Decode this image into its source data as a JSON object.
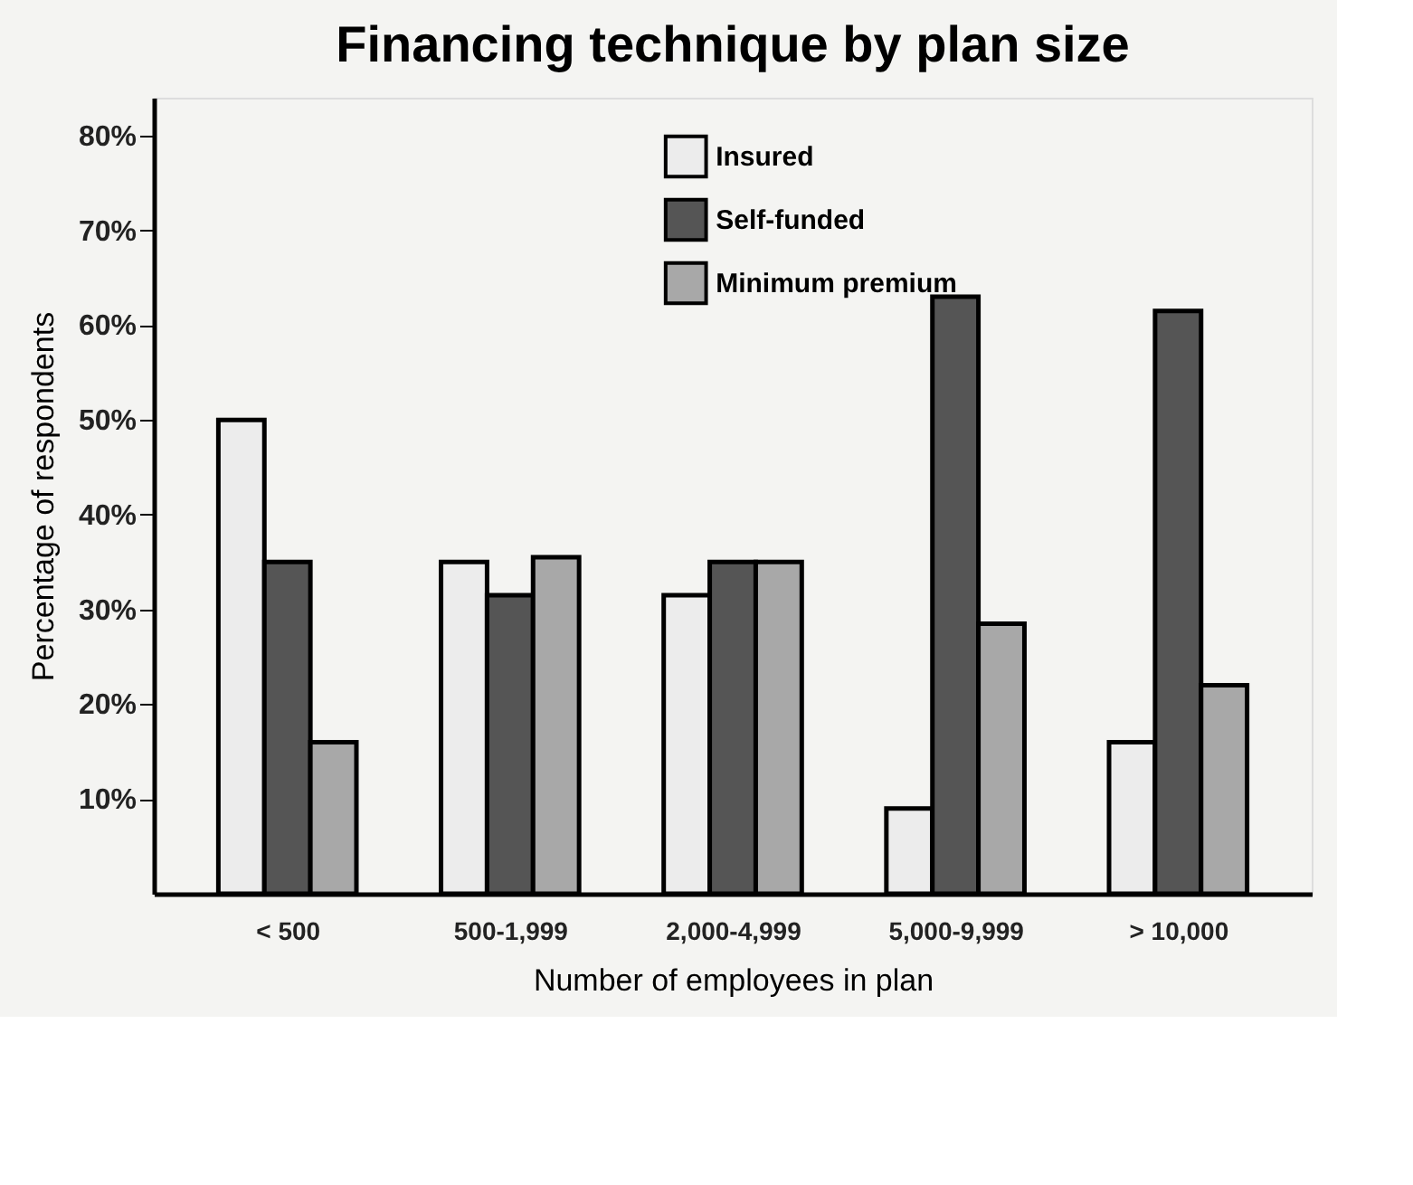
{
  "chart_data": {
    "type": "bar",
    "title": "Financing technique by plan size",
    "xlabel": "Number of employees in plan",
    "ylabel": "Percentage of respondents",
    "categories": [
      "< 500",
      "500-1,999",
      "2,000-4,999",
      "5,000-9,999",
      "> 10,000"
    ],
    "series": [
      {
        "name": "Insured",
        "color": "#ececec",
        "values": [
          50,
          35,
          31.5,
          9,
          16
        ]
      },
      {
        "name": "Self-funded",
        "color": "#555555",
        "values": [
          35,
          31.5,
          35,
          63,
          61.5
        ]
      },
      {
        "name": "Minimum premium",
        "color": "#a8a8a8",
        "values": [
          16,
          35.5,
          35,
          28.5,
          22
        ]
      }
    ],
    "ylim": [
      0,
      84
    ],
    "yticks": [
      {
        "value": 10,
        "label": "10%"
      },
      {
        "value": 20,
        "label": "20%"
      },
      {
        "value": 30,
        "label": "30%"
      },
      {
        "value": 40,
        "label": "40%"
      },
      {
        "value": 50,
        "label": "50%"
      },
      {
        "value": 60,
        "label": "60%"
      },
      {
        "value": 70,
        "label": "70%"
      },
      {
        "value": 80,
        "label": "80%"
      }
    ],
    "grid": false,
    "legend": "top"
  }
}
